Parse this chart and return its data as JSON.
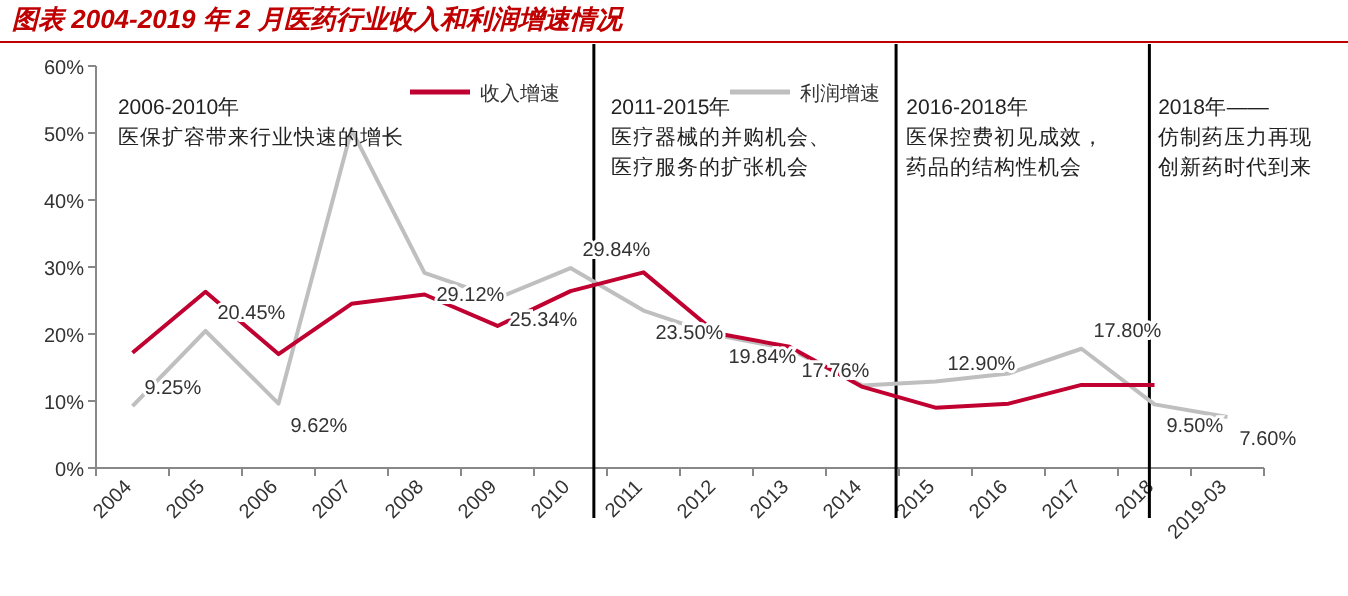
{
  "chart_data": {
    "type": "line",
    "title": "图表 2004-2019 年 2 月医药行业收入和利润增速情况",
    "categories": [
      "2004",
      "2005",
      "2006",
      "2007",
      "2008",
      "2009",
      "2010",
      "2011",
      "2012",
      "2013",
      "2014",
      "2015",
      "2016",
      "2017",
      "2018",
      "2019-03"
    ],
    "series": [
      {
        "name": "收入增速",
        "color": "#c00030",
        "values": [
          17.2,
          26.3,
          17.0,
          24.5,
          25.9,
          21.2,
          26.4,
          29.2,
          20.1,
          18.1,
          12.1,
          9.0,
          9.6,
          12.4,
          12.4,
          null
        ]
      },
      {
        "name": "利润增速",
        "color": "#bfbfbf",
        "values": [
          9.25,
          20.45,
          9.62,
          50.5,
          29.12,
          25.34,
          29.84,
          23.5,
          19.84,
          17.76,
          12.3,
          12.9,
          14.1,
          17.8,
          9.5,
          7.6
        ],
        "value_labels": [
          "9.25%",
          "20.45%",
          "9.62%",
          null,
          "29.12%",
          "25.34%",
          "29.84%",
          "23.50%",
          "19.84%",
          "17.76%",
          null,
          "12.90%",
          null,
          "17.80%",
          "9.50%",
          "7.60%"
        ]
      }
    ],
    "ylim": [
      0,
      60
    ],
    "yticks": [
      {
        "value": 0,
        "label": "0%"
      },
      {
        "value": 10,
        "label": "10%"
      },
      {
        "value": 20,
        "label": "20%"
      },
      {
        "value": 30,
        "label": "30%"
      },
      {
        "value": 40,
        "label": "40%"
      },
      {
        "value": 50,
        "label": "50%"
      },
      {
        "value": 60,
        "label": "60%"
      }
    ],
    "annotations": [
      "2006-2010年",
      "医保扩容带来行业快速的增长",
      "2011-2015年",
      "医疗器械的并购机会、",
      "医疗服务的扩张机会",
      "2016-2018年",
      "医保控费初见成效，",
      "药品的结构性机会",
      "2018年——",
      "仿制药压力再现",
      "创新药时代到来"
    ],
    "legend": "top",
    "marker": "none",
    "line_style": "solid"
  }
}
